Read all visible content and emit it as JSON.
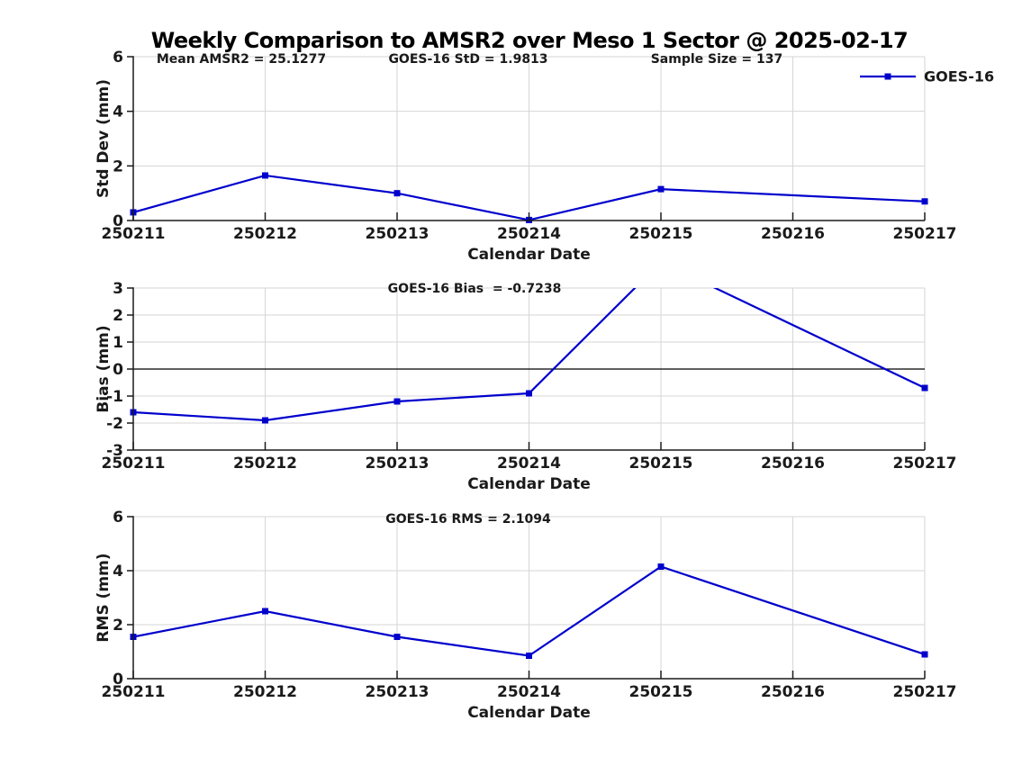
{
  "title": "Weekly Comparison to AMSR2 over Meso 1 Sector @ 2025-02-17",
  "colors": {
    "series": "#0000cd",
    "grid": "#d6d6d6",
    "axis": "#1a1a1a",
    "text": "#1a1a1a",
    "zero_line": "#000000",
    "background": "#ffffff"
  },
  "legend": {
    "label": "GOES-16",
    "marker": "square-marker-icon"
  },
  "chart_data": [
    {
      "type": "line",
      "name": "std_dev_panel",
      "ylabel": "Std Dev (mm)",
      "xlabel": "Calendar Date",
      "ylim": [
        0,
        6
      ],
      "yticks": [
        0,
        2,
        4,
        6
      ],
      "categories": [
        "250211",
        "250212",
        "250213",
        "250214",
        "250215",
        "250216",
        "250217"
      ],
      "annotations": [
        "Mean AMSR2 = 25.1277",
        "GOES-16 StD = 1.9813",
        "Sample Size = 137"
      ],
      "grid": true,
      "zero_line": false,
      "legend_position": "top-right",
      "series": [
        {
          "name": "GOES-16",
          "x": [
            "250211",
            "250212",
            "250213",
            "250214",
            "250215",
            "250217"
          ],
          "values": [
            0.3,
            1.65,
            1.0,
            0.02,
            1.15,
            0.7
          ]
        }
      ]
    },
    {
      "type": "line",
      "name": "bias_panel",
      "ylabel": "Bias (mm)",
      "xlabel": "Calendar Date",
      "ylim": [
        -3,
        3
      ],
      "yticks": [
        -3,
        -2,
        -1,
        0,
        1,
        2,
        3
      ],
      "categories": [
        "250211",
        "250212",
        "250213",
        "250214",
        "250215",
        "250216",
        "250217"
      ],
      "annotations": [
        "GOES-16 Bias  = -0.7238"
      ],
      "grid": true,
      "zero_line": true,
      "legend_position": "none",
      "series": [
        {
          "name": "GOES-16",
          "x": [
            "250211",
            "250212",
            "250213",
            "250214",
            "250215",
            "250217"
          ],
          "values": [
            -1.6,
            -1.9,
            -1.2,
            -0.9,
            3.96,
            -0.7
          ]
        }
      ]
    },
    {
      "type": "line",
      "name": "rms_panel",
      "ylabel": "RMS (mm)",
      "xlabel": "Calendar Date",
      "ylim": [
        0,
        6
      ],
      "yticks": [
        0,
        2,
        4,
        6
      ],
      "categories": [
        "250211",
        "250212",
        "250213",
        "250214",
        "250215",
        "250216",
        "250217"
      ],
      "annotations": [
        "GOES-16 RMS = 2.1094"
      ],
      "grid": true,
      "zero_line": false,
      "legend_position": "none",
      "series": [
        {
          "name": "GOES-16",
          "x": [
            "250211",
            "250212",
            "250213",
            "250214",
            "250215",
            "250217"
          ],
          "values": [
            1.55,
            2.5,
            1.55,
            0.85,
            4.15,
            0.9
          ]
        }
      ]
    }
  ]
}
